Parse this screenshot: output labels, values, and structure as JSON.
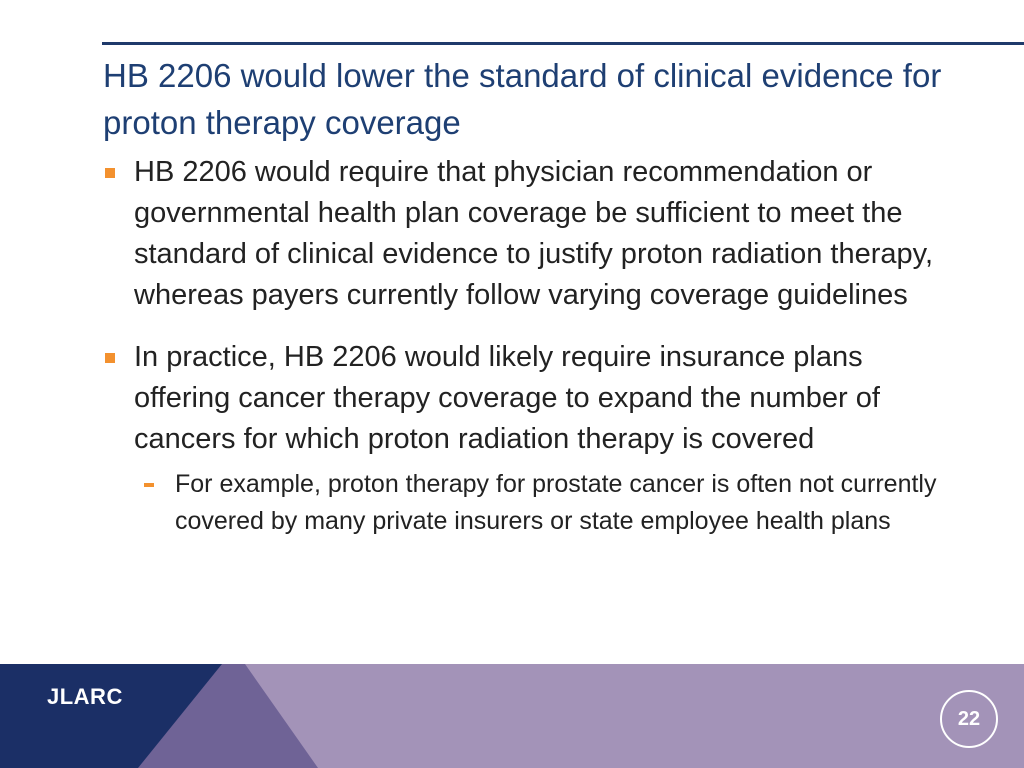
{
  "slide": {
    "title": "HB 2206 would lower the standard of clinical evidence for proton therapy coverage",
    "bullets": [
      {
        "text": "HB 2206 would require that physician recommendation or governmental health plan coverage be sufficient to meet the standard of clinical evidence to justify proton radiation therapy, whereas payers currently follow varying coverage guidelines"
      },
      {
        "text": "In practice, HB 2206 would likely require insurance plans offering cancer therapy coverage to expand the number of cancers for which proton radiation therapy is covered",
        "sub_bullets": [
          "For example, proton therapy for prostate cancer is often not currently covered by many private insurers or state employee health plans"
        ]
      }
    ]
  },
  "footer": {
    "logo_text": "JLARC",
    "page_number": "22"
  },
  "colors": {
    "title": "#1e3f73",
    "bullet_marker": "#f3912e",
    "footer_navy": "#1b2f66",
    "footer_purple_dark": "#6f6396",
    "footer_purple_light": "#a393b8"
  }
}
